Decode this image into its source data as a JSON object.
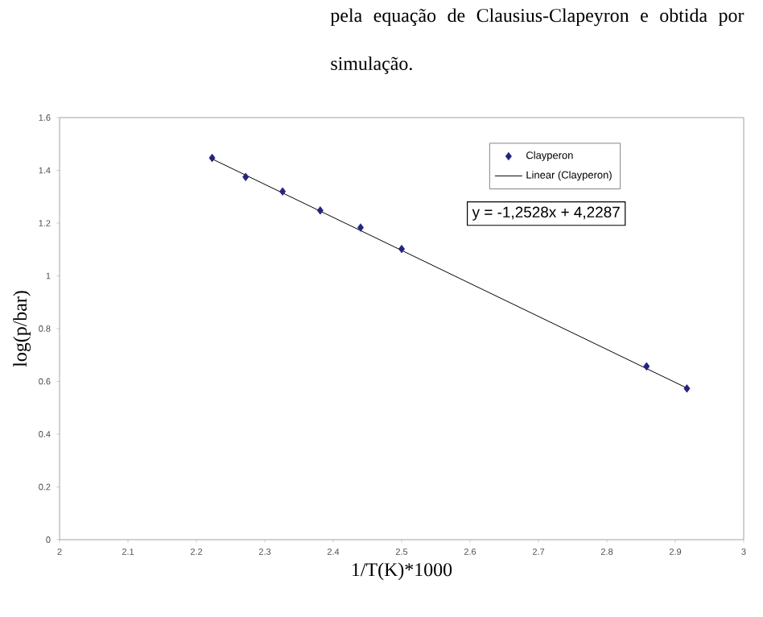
{
  "chart_data": {
    "type": "scatter",
    "xlabel": "1/T(K)*1000",
    "ylabel": "log(p/bar)",
    "xlim": [
      2,
      3
    ],
    "ylim": [
      0,
      1.6
    ],
    "xticks": [
      2,
      2.1,
      2.2,
      2.3,
      2.4,
      2.5,
      2.6,
      2.7,
      2.8,
      2.9,
      3
    ],
    "yticks": [
      0,
      0.2,
      0.4,
      0.6,
      0.8,
      1,
      1.2,
      1.4,
      1.6
    ],
    "legend": "top right",
    "series": [
      {
        "name": "Clayperon",
        "marker": "diamond",
        "color": "#25237f",
        "x": [
          2.223,
          2.272,
          2.326,
          2.381,
          2.44,
          2.5,
          2.858,
          2.917
        ],
        "values": [
          1.447,
          1.375,
          1.32,
          1.248,
          1.183,
          1.102,
          0.657,
          0.573
        ]
      },
      {
        "name": "Linear (Clayperon)",
        "type": "line",
        "marker": "none",
        "color": "#000000",
        "x": [
          2.22,
          2.92
        ],
        "values": [
          1.447,
          0.571
        ]
      }
    ],
    "annotations": [
      "pela equação de Clausius-Clapeyron e obtida por simulação.",
      "y = -1,2528x + 4,2287"
    ]
  }
}
